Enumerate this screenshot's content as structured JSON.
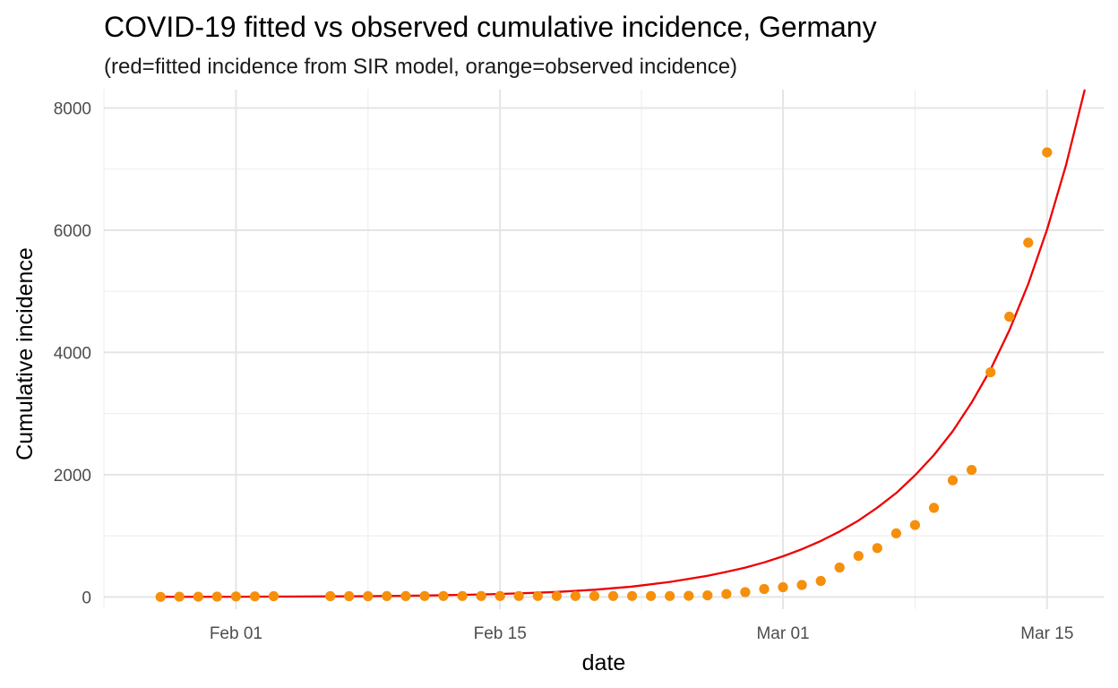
{
  "chart_data": {
    "type": "line",
    "title": "COVID-19 fitted vs observed cumulative incidence, Germany",
    "subtitle": "(red=fitted incidence from SIR model, orange=observed incidence)",
    "xlabel": "date",
    "ylabel": "Cumulative incidence",
    "xlim": [
      "2020-01-25",
      "2020-03-18"
    ],
    "ylim": [
      -200,
      8300
    ],
    "x_ticks": [
      {
        "date": "2020-02-01",
        "label": "Feb 01"
      },
      {
        "date": "2020-02-15",
        "label": "Feb 15"
      },
      {
        "date": "2020-03-01",
        "label": "Mar 01"
      },
      {
        "date": "2020-03-15",
        "label": "Mar 15"
      }
    ],
    "y_ticks": [
      0,
      2000,
      4000,
      6000,
      8000
    ],
    "grid": true,
    "legend": "none",
    "series": [
      {
        "kind": "line",
        "color": "#ee0000",
        "points": [
          [
            "2020-01-28",
            2
          ],
          [
            "2020-02-01",
            3
          ],
          [
            "2020-02-04",
            6
          ],
          [
            "2020-02-08",
            13
          ],
          [
            "2020-02-11",
            23
          ],
          [
            "2020-02-14",
            40
          ],
          [
            "2020-02-16",
            58
          ],
          [
            "2020-02-18",
            82
          ],
          [
            "2020-02-20",
            118
          ],
          [
            "2020-02-22",
            170
          ],
          [
            "2020-02-24",
            245
          ],
          [
            "2020-02-26",
            345
          ],
          [
            "2020-02-27",
            410
          ],
          [
            "2020-02-28",
            480
          ],
          [
            "2020-02-29",
            565
          ],
          [
            "2020-03-01",
            665
          ],
          [
            "2020-03-02",
            780
          ],
          [
            "2020-03-03",
            915
          ],
          [
            "2020-03-04",
            1070
          ],
          [
            "2020-03-05",
            1250
          ],
          [
            "2020-03-06",
            1460
          ],
          [
            "2020-03-07",
            1700
          ],
          [
            "2020-03-08",
            1990
          ],
          [
            "2020-03-09",
            2320
          ],
          [
            "2020-03-10",
            2710
          ],
          [
            "2020-03-11",
            3180
          ],
          [
            "2020-03-12",
            3720
          ],
          [
            "2020-03-13",
            4360
          ],
          [
            "2020-03-14",
            5120
          ],
          [
            "2020-03-15",
            6010
          ],
          [
            "2020-03-16",
            7060
          ],
          [
            "2020-03-17",
            8300
          ]
        ]
      },
      {
        "kind": "scatter",
        "color": "#f68f0c",
        "points": [
          [
            "2020-01-28",
            1
          ],
          [
            "2020-01-29",
            4
          ],
          [
            "2020-01-30",
            4
          ],
          [
            "2020-01-31",
            5
          ],
          [
            "2020-02-01",
            8
          ],
          [
            "2020-02-02",
            10
          ],
          [
            "2020-02-03",
            12
          ],
          [
            "2020-02-06",
            12
          ],
          [
            "2020-02-07",
            13
          ],
          [
            "2020-02-08",
            13
          ],
          [
            "2020-02-09",
            14
          ],
          [
            "2020-02-10",
            14
          ],
          [
            "2020-02-11",
            16
          ],
          [
            "2020-02-12",
            16
          ],
          [
            "2020-02-13",
            16
          ],
          [
            "2020-02-14",
            16
          ],
          [
            "2020-02-15",
            16
          ],
          [
            "2020-02-16",
            16
          ],
          [
            "2020-02-17",
            16
          ],
          [
            "2020-02-18",
            16
          ],
          [
            "2020-02-19",
            16
          ],
          [
            "2020-02-20",
            16
          ],
          [
            "2020-02-21",
            16
          ],
          [
            "2020-02-22",
            16
          ],
          [
            "2020-02-23",
            16
          ],
          [
            "2020-02-24",
            16
          ],
          [
            "2020-02-25",
            18
          ],
          [
            "2020-02-26",
            26
          ],
          [
            "2020-02-27",
            48
          ],
          [
            "2020-02-28",
            79
          ],
          [
            "2020-02-29",
            130
          ],
          [
            "2020-03-01",
            159
          ],
          [
            "2020-03-02",
            196
          ],
          [
            "2020-03-03",
            262
          ],
          [
            "2020-03-04",
            482
          ],
          [
            "2020-03-05",
            670
          ],
          [
            "2020-03-06",
            799
          ],
          [
            "2020-03-07",
            1040
          ],
          [
            "2020-03-08",
            1176
          ],
          [
            "2020-03-09",
            1457
          ],
          [
            "2020-03-10",
            1908
          ],
          [
            "2020-03-11",
            2078
          ],
          [
            "2020-03-12",
            3675
          ],
          [
            "2020-03-13",
            4585
          ],
          [
            "2020-03-14",
            5795
          ],
          [
            "2020-03-15",
            7272
          ]
        ]
      }
    ]
  }
}
